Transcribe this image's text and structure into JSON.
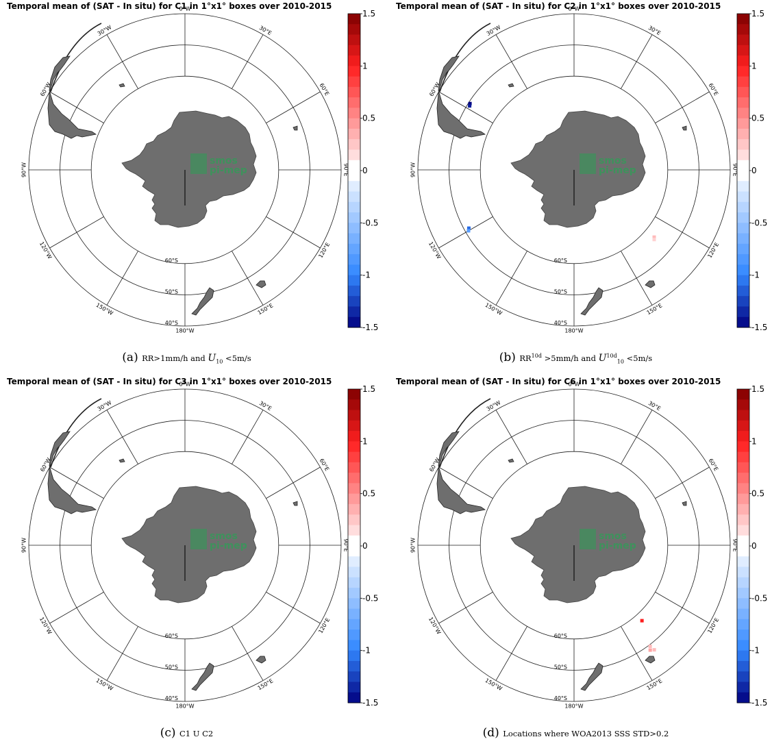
{
  "figure": {
    "panels": [
      {
        "title": "Temporal mean of (SAT - In situ) for C1 in 1°x1° boxes over 2010-2015",
        "caption_label": "(a)",
        "caption_parts": [
          {
            "t": "RR>1mm/h and "
          },
          {
            "t": "U",
            "i": true
          },
          {
            "t": "10",
            "sub": true
          },
          {
            "t": " <5m/s"
          }
        ],
        "markers": []
      },
      {
        "title": "Temporal mean of (SAT - In situ) for C2 in 1°x1° boxes over 2010-2015",
        "caption_label": "(b)",
        "caption_parts": [
          {
            "t": "RR"
          },
          {
            "t": "10d",
            "sup": true
          },
          {
            "t": " >5mm/h and "
          },
          {
            "t": "U",
            "i": true
          },
          {
            "t": "10d",
            "sup": true
          },
          {
            "t": "10",
            "sub": true
          },
          {
            "t": " <5m/s"
          }
        ],
        "markers": [
          {
            "lon": -57.5,
            "lat": -50.5,
            "value": -1.5
          },
          {
            "lon": -58.5,
            "lat": -50.8,
            "value": -1.4
          },
          {
            "lon": -119.0,
            "lat": -51.5,
            "value": -1.1
          },
          {
            "lon": -120.0,
            "lat": -51.0,
            "value": -0.8
          },
          {
            "lon": 130.0,
            "lat": -56.5,
            "value": 0.3
          },
          {
            "lon": 131.0,
            "lat": -56.0,
            "value": 0.2
          }
        ]
      },
      {
        "title": "Temporal mean of (SAT - In situ) for C3 in 1°x1° boxes over 2010-2015",
        "caption_label": "(c)",
        "caption_parts": [
          {
            "t": "C1 U C2"
          }
        ],
        "markers": []
      },
      {
        "title": "Temporal mean of (SAT - In situ) for C6 in 1°x1° boxes over 2010-2015",
        "caption_label": "(d)",
        "caption_parts": [
          {
            "t": "Locations where WOA2013 SSS STD>0.2"
          }
        ],
        "markers": [
          {
            "lon": 138.0,
            "lat": -57.5,
            "value": 1.0
          },
          {
            "lon": 143.0,
            "lat": -49.5,
            "value": 0.3
          },
          {
            "lon": 144.0,
            "lat": -48.5,
            "value": 0.4
          },
          {
            "lon": 142.5,
            "lat": -47.8,
            "value": 0.3
          }
        ]
      }
    ],
    "colorbar": {
      "ticks": [
        "1.5",
        "1",
        "0.5",
        "0",
        "-0.5",
        "-1",
        "-1.5"
      ],
      "vmin": -1.5,
      "vmax": 1.5,
      "levels": 30,
      "colors": {
        "low": "#000080",
        "mid_low": "#3388ff",
        "zero": "#ffffff",
        "mid_high": "#ff2020",
        "high": "#800000"
      }
    },
    "graticule": {
      "lon_labels": [
        "0°W",
        "30°E",
        "60°E",
        "90°E",
        "120°E",
        "150°E",
        "180°W",
        "150°W",
        "120°W",
        "90°W",
        "60°W",
        "30°W"
      ],
      "lat_labels": [
        "60°S",
        "50°S",
        "40°S"
      ]
    },
    "watermark": {
      "line1": "smos",
      "line2": "pi-mep"
    },
    "colors": {
      "land": "#6e6e6e",
      "grid": "#1a1a1a"
    }
  }
}
